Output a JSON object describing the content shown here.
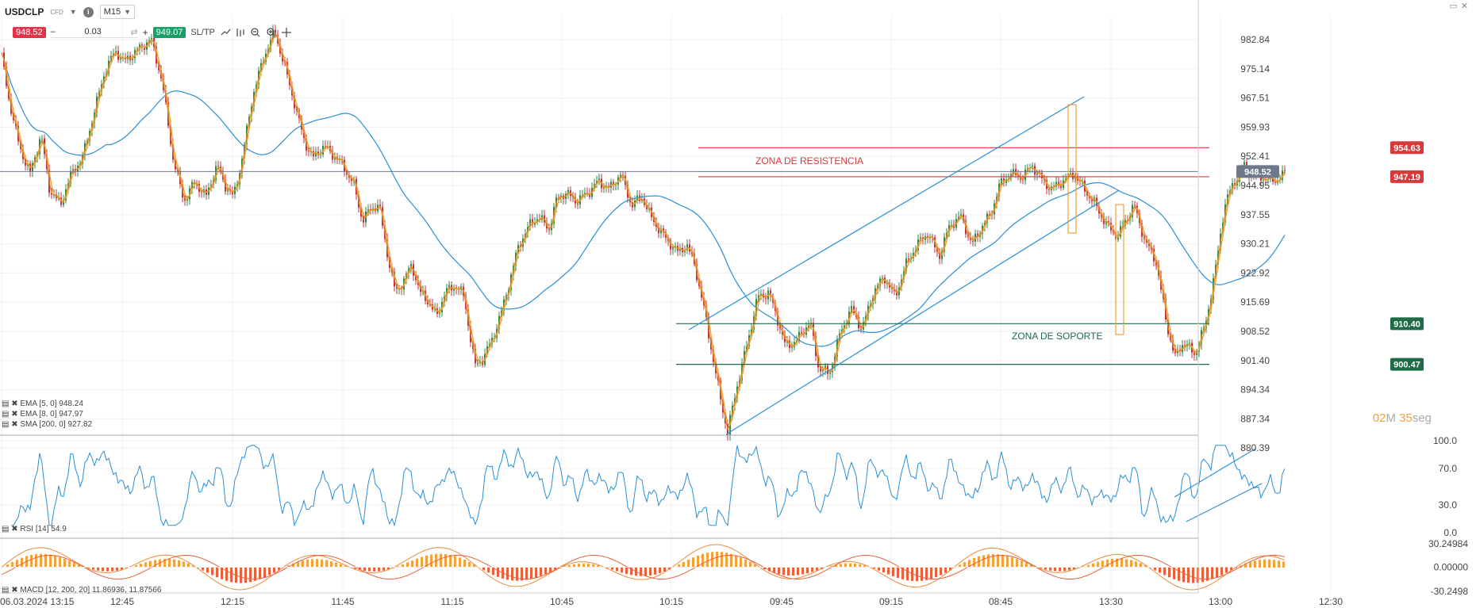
{
  "header": {
    "symbol": "USDCLP",
    "symbol_type": "CFD",
    "timeframe": "M15",
    "sell_price": "948.52",
    "buy_price": "949.07",
    "quantity": "0.03",
    "sltp_label": "SL/TP",
    "minus": "–",
    "plus": "+"
  },
  "legend": {
    "ema5": "EMA [5, 0] 948.24",
    "ema8": "EMA [8, 0] 947.97",
    "sma200": "SMA [200, 0] 927.82",
    "rsi": "RSI [14] 54.9",
    "macd": "MACD [12, 200, 20] 11.86936, 11.87566"
  },
  "timer": {
    "minutes": "02",
    "m": "M",
    "seconds": "35",
    "seg": "seg"
  },
  "colors": {
    "resistance": "#d63a3a",
    "support": "#1f6b48",
    "sma": "#2a8fd6",
    "ema": "#f2a23a",
    "bull": "#2f8a4a",
    "bear": "#c03045",
    "rsi": "#2a8fd6",
    "macd": "#f2a23a",
    "current_price": "#6e7888"
  },
  "chart_data": {
    "type": "candlestick",
    "symbol": "USDCLP",
    "timeframe": "M15",
    "current_price": 948.52,
    "ylim": [
      880.39,
      982.84
    ],
    "price_ticks": [
      "982.84",
      "975.14",
      "967.51",
      "959.93",
      "952.41",
      "944.95",
      "937.55",
      "930.21",
      "922.92",
      "915.69",
      "908.52",
      "901.40",
      "894.34",
      "887.34",
      "880.39"
    ],
    "x_ticks": [
      "06.03.2024 13:15",
      "12:45",
      "12:15",
      "11:45",
      "11:15",
      "10:45",
      "10:15",
      "09:45",
      "09:15",
      "08:45",
      "13:30",
      "13:00",
      "12:30"
    ],
    "close_path": [
      [
        0,
        981
      ],
      [
        6,
        968
      ],
      [
        14,
        955
      ],
      [
        22,
        948
      ],
      [
        30,
        958
      ],
      [
        36,
        944
      ],
      [
        44,
        940
      ],
      [
        52,
        948
      ],
      [
        60,
        952
      ],
      [
        68,
        963
      ],
      [
        76,
        974
      ],
      [
        84,
        980
      ],
      [
        90,
        977
      ],
      [
        100,
        980
      ],
      [
        110,
        983
      ],
      [
        118,
        972
      ],
      [
        126,
        952
      ],
      [
        134,
        941
      ],
      [
        142,
        946
      ],
      [
        150,
        942
      ],
      [
        158,
        950
      ],
      [
        164,
        945
      ],
      [
        170,
        942
      ],
      [
        176,
        951
      ],
      [
        184,
        968
      ],
      [
        192,
        978
      ],
      [
        200,
        985
      ],
      [
        208,
        975
      ],
      [
        216,
        964
      ],
      [
        222,
        956
      ],
      [
        228,
        952
      ],
      [
        236,
        955
      ],
      [
        242,
        953
      ],
      [
        250,
        950
      ],
      [
        258,
        945
      ],
      [
        264,
        936
      ],
      [
        270,
        939
      ],
      [
        276,
        940
      ],
      [
        282,
        928
      ],
      [
        288,
        918
      ],
      [
        294,
        921
      ],
      [
        300,
        925
      ],
      [
        306,
        918
      ],
      [
        312,
        916
      ],
      [
        318,
        912
      ],
      [
        324,
        918
      ],
      [
        332,
        920
      ],
      [
        338,
        917
      ],
      [
        346,
        900
      ],
      [
        352,
        902
      ],
      [
        358,
        906
      ],
      [
        366,
        914
      ],
      [
        372,
        922
      ],
      [
        378,
        930
      ],
      [
        386,
        935
      ],
      [
        392,
        937
      ],
      [
        400,
        934
      ],
      [
        406,
        942
      ],
      [
        412,
        943
      ],
      [
        420,
        941
      ],
      [
        428,
        943
      ],
      [
        436,
        946
      ],
      [
        444,
        944
      ],
      [
        452,
        948
      ],
      [
        460,
        940
      ],
      [
        468,
        942
      ],
      [
        474,
        937
      ],
      [
        484,
        932
      ],
      [
        494,
        928
      ],
      [
        500,
        930
      ],
      [
        506,
        925
      ],
      [
        514,
        912
      ],
      [
        522,
        897
      ],
      [
        530,
        884
      ],
      [
        536,
        894
      ],
      [
        544,
        905
      ],
      [
        552,
        917
      ],
      [
        560,
        918
      ],
      [
        566,
        912
      ],
      [
        572,
        905
      ],
      [
        580,
        906
      ],
      [
        590,
        911
      ],
      [
        596,
        900
      ],
      [
        604,
        898
      ],
      [
        612,
        908
      ],
      [
        620,
        914
      ],
      [
        628,
        909
      ],
      [
        636,
        918
      ],
      [
        644,
        922
      ],
      [
        652,
        917
      ],
      [
        660,
        925
      ],
      [
        668,
        930
      ],
      [
        676,
        933
      ],
      [
        684,
        927
      ],
      [
        692,
        935
      ],
      [
        700,
        937
      ],
      [
        708,
        930
      ],
      [
        716,
        935
      ],
      [
        722,
        938
      ],
      [
        728,
        945
      ],
      [
        736,
        948
      ],
      [
        744,
        947
      ],
      [
        752,
        950
      ],
      [
        760,
        946
      ],
      [
        766,
        944
      ],
      [
        774,
        946
      ],
      [
        782,
        948
      ],
      [
        790,
        944
      ],
      [
        798,
        940
      ],
      [
        806,
        935
      ],
      [
        814,
        932
      ],
      [
        820,
        936
      ],
      [
        826,
        940
      ],
      [
        834,
        931
      ],
      [
        842,
        926
      ],
      [
        850,
        910
      ],
      [
        856,
        902
      ],
      [
        862,
        906
      ],
      [
        870,
        903
      ],
      [
        878,
        910
      ],
      [
        886,
        925
      ],
      [
        892,
        940
      ],
      [
        898,
        945
      ],
      [
        906,
        950
      ],
      [
        912,
        948
      ],
      [
        920,
        947
      ],
      [
        928,
        946
      ],
      [
        936,
        948
      ]
    ],
    "zones": [
      {
        "label": "ZONA DE RESISTENCIA",
        "prices": [
          954.63,
          947.19
        ]
      },
      {
        "label": "ZONA DE SOPORTE",
        "prices": [
          910.4,
          900.47
        ]
      }
    ],
    "price_tags": [
      {
        "value": "954.63",
        "kind": "resistance"
      },
      {
        "value": "947.19",
        "kind": "resistance"
      },
      {
        "value": "948.52",
        "kind": "current"
      },
      {
        "value": "910.40",
        "kind": "support"
      },
      {
        "value": "900.47",
        "kind": "support"
      }
    ],
    "rsi": {
      "ticks": [
        "100.0",
        "70.0",
        "30.0",
        "0.0"
      ],
      "levels": [
        100,
        70,
        30,
        0
      ]
    },
    "macd": {
      "ticks": [
        "30.24984",
        "0.00000",
        "-30.2498"
      ],
      "range": [
        -30.2498,
        30.24984
      ]
    }
  }
}
